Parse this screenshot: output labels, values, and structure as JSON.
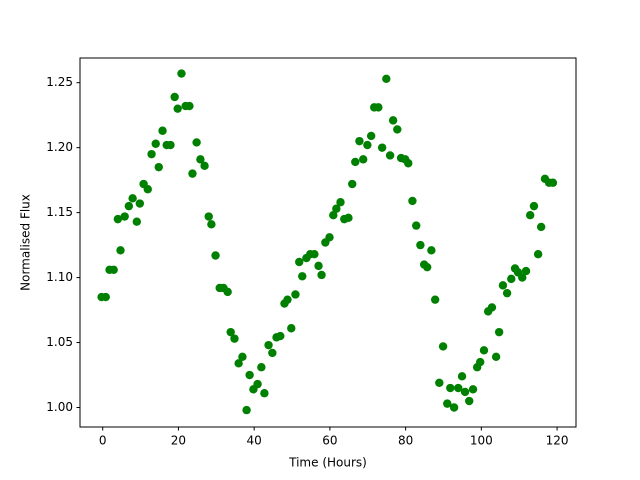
{
  "chart_data": {
    "type": "scatter",
    "x_label": "Time (Hours)",
    "y_label": "Normalised Flux",
    "color": "#008000",
    "xlim": [
      -6,
      125
    ],
    "ylim": [
      0.985,
      1.269
    ],
    "xticks": [
      0,
      20,
      40,
      60,
      80,
      100,
      120
    ],
    "yticks": [
      {
        "value": 1,
        "label": "1.00"
      },
      1.05,
      {
        "value": 1.1,
        "label": "1.10"
      },
      1.15,
      {
        "value": 1.2,
        "label": "1.20"
      },
      1.25
    ],
    "x": [
      -0.3,
      0.8,
      1.8,
      2.9,
      4.0,
      4.7,
      5.8,
      6.9,
      7.9,
      9.0,
      9.8,
      10.8,
      11.9,
      12.9,
      14.0,
      14.8,
      15.8,
      16.9,
      17.9,
      19.0,
      19.8,
      20.8,
      21.9,
      22.9,
      23.7,
      24.8,
      25.8,
      26.9,
      28.0,
      28.7,
      29.8,
      30.9,
      31.9,
      33.0,
      33.8,
      34.8,
      35.9,
      36.9,
      38.0,
      38.8,
      39.8,
      40.9,
      41.9,
      42.7,
      43.8,
      44.8,
      45.9,
      46.9,
      48.0,
      48.8,
      49.8,
      50.9,
      51.9,
      52.7,
      53.8,
      54.8,
      55.9,
      57.0,
      57.8,
      58.8,
      59.9,
      60.9,
      61.7,
      62.8,
      63.8,
      64.9,
      65.9,
      66.7,
      67.8,
      68.8,
      69.9,
      70.9,
      71.7,
      72.8,
      73.8,
      74.9,
      75.9,
      76.7,
      77.8,
      78.8,
      79.9,
      80.7,
      81.8,
      82.8,
      83.9,
      84.9,
      85.7,
      86.8,
      87.8,
      88.9,
      89.9,
      91.0,
      91.8,
      92.8,
      93.9,
      94.9,
      95.7,
      96.8,
      97.8,
      98.9,
      99.7,
      100.7,
      101.8,
      102.8,
      103.9,
      104.7,
      105.7,
      106.8,
      107.9,
      108.9,
      109.7,
      110.8,
      111.8,
      112.9,
      113.9,
      115.0,
      115.8,
      116.8,
      117.9,
      118.9
    ],
    "values": [
      1.085,
      1.085,
      1.106,
      1.106,
      1.145,
      1.121,
      1.147,
      1.155,
      1.161,
      1.143,
      1.157,
      1.172,
      1.168,
      1.195,
      1.203,
      1.185,
      1.213,
      1.202,
      1.202,
      1.239,
      1.23,
      1.257,
      1.232,
      1.232,
      1.18,
      1.204,
      1.191,
      1.186,
      1.147,
      1.141,
      1.117,
      1.092,
      1.092,
      1.089,
      1.058,
      1.053,
      1.034,
      1.039,
      0.998,
      1.025,
      1.014,
      1.018,
      1.031,
      1.011,
      1.048,
      1.042,
      1.054,
      1.055,
      1.08,
      1.083,
      1.061,
      1.087,
      1.112,
      1.101,
      1.115,
      1.118,
      1.118,
      1.109,
      1.102,
      1.127,
      1.131,
      1.148,
      1.153,
      1.158,
      1.145,
      1.146,
      1.172,
      1.189,
      1.205,
      1.191,
      1.202,
      1.209,
      1.231,
      1.231,
      1.2,
      1.253,
      1.194,
      1.221,
      1.214,
      1.192,
      1.191,
      1.188,
      1.159,
      1.14,
      1.125,
      1.11,
      1.108,
      1.121,
      1.083,
      1.019,
      1.047,
      1.003,
      1.015,
      1.0,
      1.015,
      1.024,
      1.012,
      1.005,
      1.014,
      1.031,
      1.035,
      1.044,
      1.074,
      1.077,
      1.039,
      1.058,
      1.094,
      1.088,
      1.099,
      1.107,
      1.104,
      1.1,
      1.105,
      1.148,
      1.155,
      1.118,
      1.139,
      1.176,
      1.173,
      1.173
    ]
  }
}
